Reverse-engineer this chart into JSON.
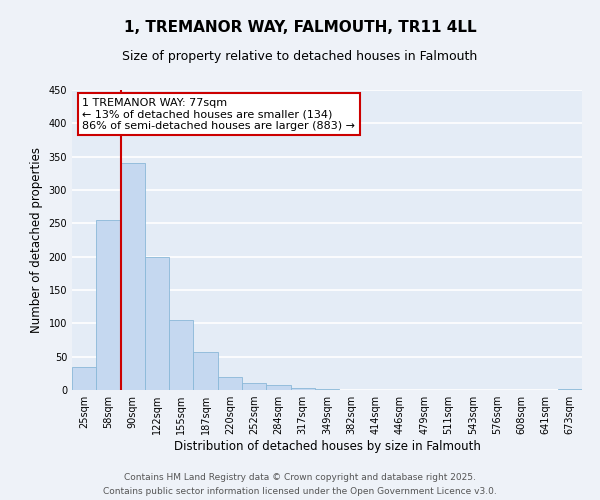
{
  "title": "1, TREMANOR WAY, FALMOUTH, TR11 4LL",
  "subtitle": "Size of property relative to detached houses in Falmouth",
  "xlabel": "Distribution of detached houses by size in Falmouth",
  "ylabel": "Number of detached properties",
  "bar_labels": [
    "25sqm",
    "58sqm",
    "90sqm",
    "122sqm",
    "155sqm",
    "187sqm",
    "220sqm",
    "252sqm",
    "284sqm",
    "317sqm",
    "349sqm",
    "382sqm",
    "414sqm",
    "446sqm",
    "479sqm",
    "511sqm",
    "543sqm",
    "576sqm",
    "608sqm",
    "641sqm",
    "673sqm"
  ],
  "bar_values": [
    35,
    255,
    340,
    200,
    105,
    57,
    20,
    10,
    7,
    3,
    2,
    0,
    0,
    0,
    0,
    0,
    0,
    0,
    0,
    0,
    2
  ],
  "bar_color": "#c5d8f0",
  "bar_edge_color": "#8ab8d8",
  "property_line_x": 1.5,
  "property_label": "1 TREMANOR WAY: 77sqm",
  "annotation_line1": "← 13% of detached houses are smaller (134)",
  "annotation_line2": "86% of semi-detached houses are larger (883) →",
  "vline_color": "#cc0000",
  "annotation_box_color": "#cc0000",
  "ylim": [
    0,
    450
  ],
  "yticks": [
    0,
    50,
    100,
    150,
    200,
    250,
    300,
    350,
    400,
    450
  ],
  "footer1": "Contains HM Land Registry data © Crown copyright and database right 2025.",
  "footer2": "Contains public sector information licensed under the Open Government Licence v3.0.",
  "bg_color": "#eef2f8",
  "plot_bg_color": "#e4ecf6",
  "grid_color": "#ffffff",
  "title_fontsize": 11,
  "subtitle_fontsize": 9,
  "axis_label_fontsize": 8.5,
  "tick_fontsize": 7,
  "footer_fontsize": 6.5,
  "annotation_fontsize": 8
}
